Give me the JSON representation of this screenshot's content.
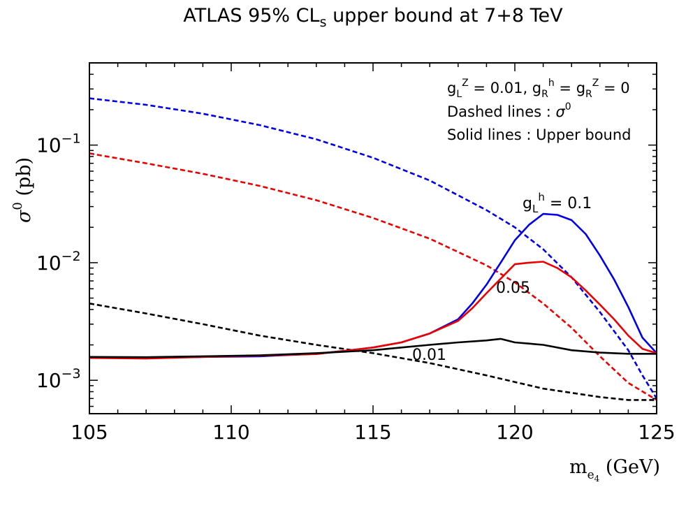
{
  "chart_data": {
    "type": "line",
    "title": "ATLAS 95% CL_s upper bound at 7+8 TeV",
    "xlabel": "m_e4 (GeV)",
    "ylabel": "σ^0 (pb)",
    "xlim": [
      105,
      125
    ],
    "ylim": [
      0.00052,
      0.5
    ],
    "yscale": "log",
    "x_ticks": [
      105,
      110,
      115,
      120,
      125
    ],
    "x_tick_labels": [
      "105",
      "110",
      "115",
      "120",
      "125"
    ],
    "y_ticks": [
      0.001,
      0.01,
      0.1
    ],
    "y_tick_labels": [
      "10^-3",
      "10^-2",
      "10^-1"
    ],
    "grid": false,
    "legend_position": "top-right",
    "annotations": {
      "legend_line1": "g_L^Z = 0.01, g_R^h = g_R^Z = 0",
      "legend_line2": "Dashed lines : σ^0",
      "legend_line3": "Solid lines : Upper bound",
      "label_01": "g_L^h = 0.1",
      "label_005": "0.05",
      "label_001": "0.01"
    },
    "series": [
      {
        "label_key": "label_01",
        "color": "#0000ee",
        "style": "dashed",
        "x": [
          105,
          107,
          109,
          111,
          113,
          115,
          117,
          119,
          120,
          121,
          122,
          123,
          124,
          124.5,
          125
        ],
        "y": [
          0.25,
          0.22,
          0.185,
          0.148,
          0.112,
          0.078,
          0.05,
          0.028,
          0.02,
          0.013,
          0.0075,
          0.0038,
          0.0018,
          0.0011,
          0.0007
        ]
      },
      {
        "label_key": "label_005",
        "color": "#ee0000",
        "style": "dashed",
        "x": [
          105,
          107,
          109,
          111,
          113,
          115,
          117,
          119,
          120,
          121,
          122,
          123,
          124,
          125
        ],
        "y": [
          0.085,
          0.07,
          0.057,
          0.045,
          0.034,
          0.024,
          0.016,
          0.0095,
          0.0068,
          0.0045,
          0.0028,
          0.0016,
          0.00095,
          0.00068
        ]
      },
      {
        "label_key": "label_001",
        "color": "#000000",
        "style": "dashed",
        "x": [
          105,
          107,
          109,
          111,
          113,
          115,
          117,
          119,
          121,
          123,
          124,
          125
        ],
        "y": [
          0.0045,
          0.0037,
          0.003,
          0.0024,
          0.002,
          0.0017,
          0.0014,
          0.0011,
          0.00085,
          0.00072,
          0.00068,
          0.00068
        ]
      },
      {
        "label_key": "label_01",
        "color": "#0000ee",
        "style": "solid",
        "x": [
          105,
          107,
          109,
          111,
          113,
          114,
          115,
          116,
          117,
          118,
          118.5,
          119,
          119.5,
          120,
          120.5,
          121,
          121.5,
          122,
          122.5,
          123,
          123.5,
          124,
          124.5,
          125
        ],
        "y": [
          0.00155,
          0.00155,
          0.00158,
          0.0016,
          0.00168,
          0.00178,
          0.0019,
          0.0021,
          0.0025,
          0.0033,
          0.0045,
          0.0065,
          0.01,
          0.0155,
          0.021,
          0.026,
          0.0255,
          0.023,
          0.0175,
          0.0115,
          0.0072,
          0.0042,
          0.0023,
          0.0017
        ]
      },
      {
        "label_key": "label_005",
        "color": "#ee0000",
        "style": "solid",
        "x": [
          105,
          107,
          109,
          111,
          113,
          114,
          115,
          116,
          117,
          118,
          118.5,
          119,
          119.5,
          120,
          120.5,
          121,
          121.5,
          122,
          122.5,
          123,
          123.5,
          124,
          124.5,
          125
        ],
        "y": [
          0.00155,
          0.00153,
          0.00158,
          0.00162,
          0.00167,
          0.00178,
          0.0019,
          0.0021,
          0.0025,
          0.0032,
          0.0041,
          0.0055,
          0.0073,
          0.0097,
          0.01,
          0.0102,
          0.009,
          0.0075,
          0.0058,
          0.0044,
          0.0033,
          0.0024,
          0.00185,
          0.0017
        ]
      },
      {
        "label_key": "label_001",
        "color": "#000000",
        "style": "solid",
        "x": [
          105,
          107,
          109,
          111,
          113,
          114,
          115,
          116,
          117,
          118,
          119,
          119.5,
          120,
          121,
          122,
          123,
          124,
          125
        ],
        "y": [
          0.00158,
          0.00157,
          0.0016,
          0.00163,
          0.0017,
          0.00175,
          0.0018,
          0.0019,
          0.002,
          0.0021,
          0.00218,
          0.00225,
          0.0021,
          0.002,
          0.0018,
          0.00172,
          0.00168,
          0.00168
        ]
      }
    ]
  }
}
